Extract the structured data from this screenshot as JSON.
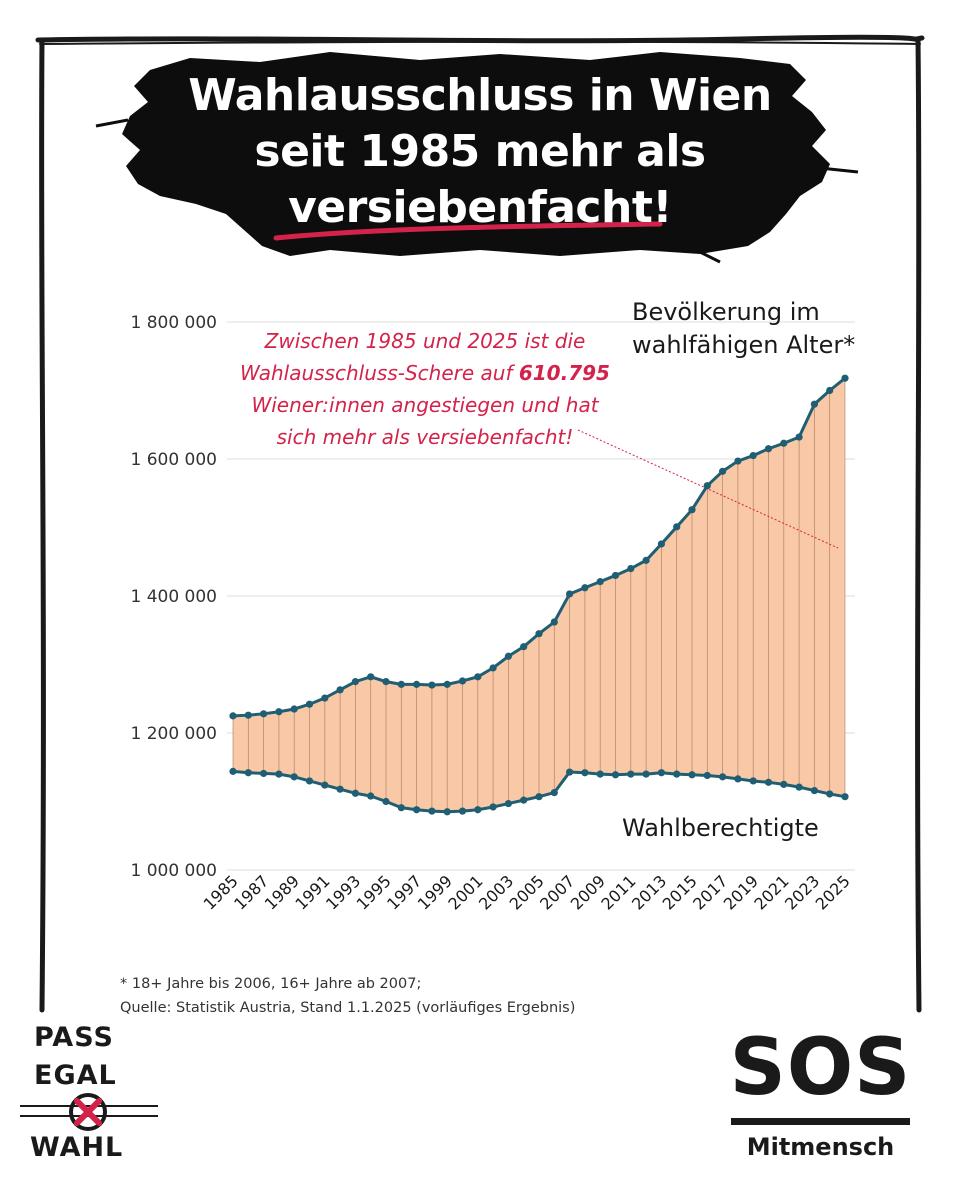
{
  "headline": {
    "line1": "Wahlausschluss in Wien",
    "line2": "seit 1985 mehr als",
    "line3": "versiebenfacht!"
  },
  "annotation": {
    "part1": "Zwischen 1985 und 2025  ist die Wahlausschluss-Schere auf ",
    "highlight": "610.795",
    "part2": " Wiener:innen angestiegen und hat sich mehr als versiebenfacht!"
  },
  "footnote": {
    "line1": "* 18+ Jahre bis 2006, 16+ Jahre ab 2007;",
    "line2": "Quelle: Statistik Austria, Stand 1.1.2025 (vorläufiges Ergebnis)"
  },
  "logos": {
    "left": {
      "word1": "PASS",
      "word2": "EGAL",
      "word3": "WAHL"
    },
    "right": {
      "title": "SOS",
      "subtitle": "Mitmensch"
    }
  },
  "colors": {
    "line": "#1f5e73",
    "fill": "#f9c8a6",
    "annotation": "#d4234a",
    "grid": "#dcdcdc",
    "frame": "#1a1a1a",
    "brush": "#0d0d0d",
    "underline": "#d4234a"
  },
  "chart_data": {
    "type": "area",
    "title": "",
    "xlabel": "",
    "ylabel": "",
    "ylim": [
      1000000,
      1800000
    ],
    "yticks": [
      1000000,
      1200000,
      1400000,
      1600000,
      1800000
    ],
    "ytick_labels": [
      "1 000 000",
      "1 200 000",
      "1 400 000",
      "1 600 000",
      "1 800 000"
    ],
    "xtick_labels": [
      "1985",
      "1987",
      "1989",
      "1991",
      "1993",
      "1995",
      "1997",
      "1999",
      "2001",
      "2003",
      "2005",
      "2007",
      "2009",
      "2011",
      "2013",
      "2015",
      "2017",
      "2019",
      "2021",
      "2023",
      "2025"
    ],
    "grid": true,
    "x": [
      1985,
      1986,
      1987,
      1988,
      1989,
      1990,
      1991,
      1992,
      1993,
      1994,
      1995,
      1996,
      1997,
      1998,
      1999,
      2000,
      2001,
      2002,
      2003,
      2004,
      2005,
      2006,
      2007,
      2008,
      2009,
      2010,
      2011,
      2012,
      2013,
      2014,
      2015,
      2016,
      2017,
      2018,
      2019,
      2020,
      2021,
      2022,
      2023,
      2024,
      2025
    ],
    "series": [
      {
        "name": "Bevölkerung im wahlfähigen Alter*",
        "values": [
          1225000,
          1226000,
          1228000,
          1231000,
          1235000,
          1242000,
          1251000,
          1263000,
          1275000,
          1282000,
          1275000,
          1271000,
          1271000,
          1270000,
          1271000,
          1276000,
          1282000,
          1295000,
          1312000,
          1326000,
          1345000,
          1362000,
          1403000,
          1412000,
          1421000,
          1430000,
          1440000,
          1452000,
          1476000,
          1501000,
          1526000,
          1561000,
          1582000,
          1597000,
          1605000,
          1615000,
          1623000,
          1632000,
          1680000,
          1700000,
          1718000
        ]
      },
      {
        "name": "Wahlberechtigte",
        "values": [
          1144000,
          1142000,
          1141000,
          1140000,
          1136000,
          1130000,
          1124000,
          1118000,
          1112000,
          1108000,
          1100000,
          1091000,
          1088000,
          1086000,
          1085000,
          1086000,
          1088000,
          1092000,
          1097000,
          1102000,
          1107000,
          1113000,
          1143000,
          1142000,
          1140000,
          1139000,
          1140000,
          1140000,
          1142000,
          1140000,
          1139000,
          1138000,
          1136000,
          1133000,
          1130000,
          1128000,
          1125000,
          1121000,
          1116000,
          1111000,
          1107000
        ]
      }
    ],
    "annotations": [
      "Zwischen 1985 und 2025  ist die Wahlausschluss-Schere auf 610.795 Wiener:innen angestiegen und hat sich mehr als versiebenfacht!"
    ]
  }
}
